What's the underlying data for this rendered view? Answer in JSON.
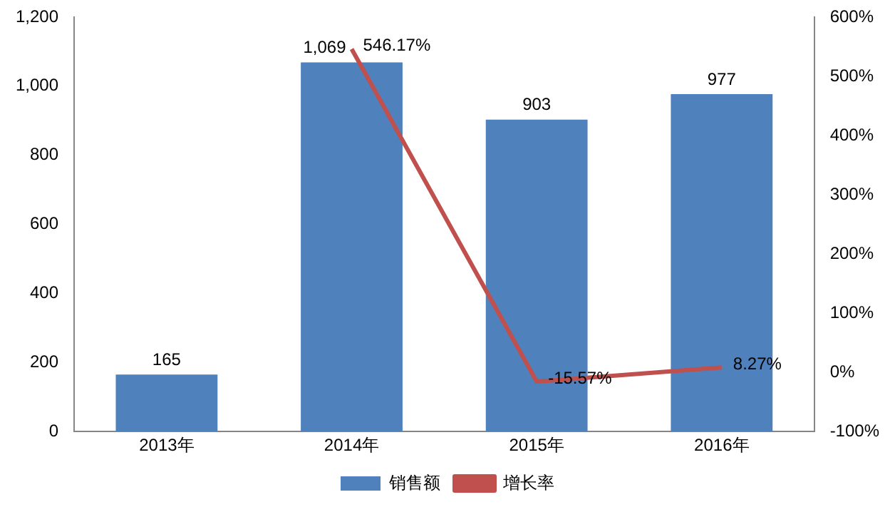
{
  "chart_data": {
    "type": "bar",
    "categories": [
      "2013年",
      "2014年",
      "2015年",
      "2016年"
    ],
    "series": [
      {
        "name": "销售额",
        "color": "#4f81bd",
        "values": [
          165,
          1069,
          903,
          977
        ],
        "value_labels": [
          "165",
          "1,069",
          "903",
          "977"
        ]
      },
      {
        "name": "增长率",
        "type": "line",
        "axis": "y2",
        "color": "#c0504d",
        "values": [
          null,
          546.17,
          -15.57,
          8.27
        ],
        "value_labels": [
          null,
          "546.17%",
          "-15.57%",
          "8.27%"
        ]
      }
    ],
    "ylim": [
      0,
      1200
    ],
    "yticks": [
      0,
      200,
      400,
      600,
      800,
      {
        "value": 1000,
        "label": "1,000"
      },
      {
        "value": 1200,
        "label": "1,200"
      }
    ],
    "y2lim": [
      -100,
      600
    ],
    "y2ticks": [
      {
        "value": -100,
        "label": "-100%"
      },
      {
        "value": 0,
        "label": "0%"
      },
      {
        "value": 100,
        "label": "100%"
      },
      {
        "value": 200,
        "label": "200%"
      },
      {
        "value": 300,
        "label": "300%"
      },
      {
        "value": 400,
        "label": "400%"
      },
      {
        "value": 500,
        "label": "500%"
      },
      {
        "value": 600,
        "label": "600%"
      }
    ],
    "grid": false,
    "legend": "bottom",
    "marker": "none",
    "line_style": "solid"
  }
}
